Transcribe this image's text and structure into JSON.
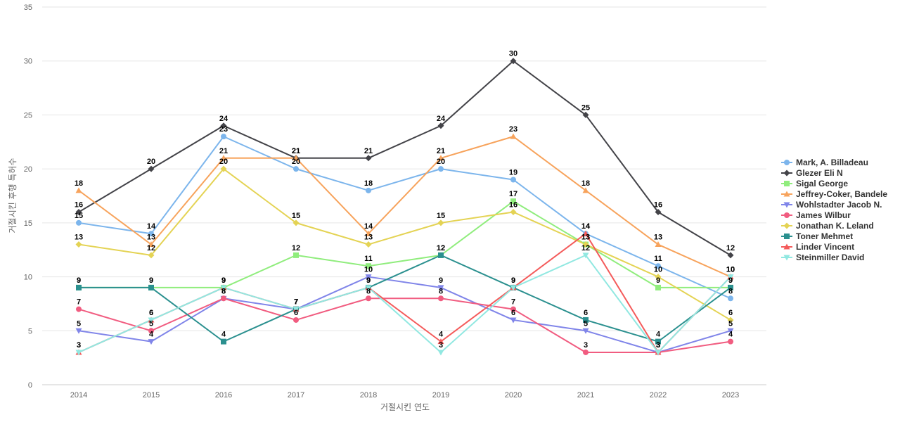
{
  "chart_data": {
    "type": "line",
    "title": "",
    "xlabel": "거절시킨 연도",
    "ylabel": "거절시킨 후행 특허수",
    "x": [
      2014,
      2015,
      2016,
      2017,
      2018,
      2019,
      2020,
      2021,
      2022,
      2023
    ],
    "ylim": [
      0,
      35
    ],
    "yticks": [
      0,
      5,
      10,
      15,
      20,
      25,
      30,
      35
    ],
    "grid": true,
    "legend_position": "right",
    "series": [
      {
        "name": "Mark, A. Billadeau",
        "color": "#7cb5ec",
        "marker": "circle",
        "values": [
          15,
          14,
          23,
          20,
          18,
          20,
          19,
          14,
          11,
          8
        ]
      },
      {
        "name": "Glezer Eli N",
        "color": "#434348",
        "marker": "diamond",
        "values": [
          16,
          20,
          24,
          21,
          21,
          24,
          30,
          25,
          16,
          12
        ]
      },
      {
        "name": "Sigal George",
        "color": "#90ed7d",
        "marker": "square",
        "values": [
          9,
          9,
          9,
          12,
          11,
          12,
          17,
          13,
          9,
          9
        ]
      },
      {
        "name": "Jeffrey-Coker, Bandele",
        "color": "#f7a35c",
        "marker": "triangle",
        "values": [
          18,
          13,
          21,
          21,
          14,
          21,
          23,
          18,
          13,
          10
        ]
      },
      {
        "name": "Wohlstadter Jacob N.",
        "color": "#8085e9",
        "marker": "triangle-down",
        "values": [
          5,
          4,
          8,
          7,
          10,
          9,
          6,
          5,
          3,
          5
        ]
      },
      {
        "name": "James Wilbur",
        "color": "#f15c80",
        "marker": "circle",
        "values": [
          7,
          5,
          8,
          6,
          8,
          8,
          7,
          3,
          3,
          4
        ]
      },
      {
        "name": "Jonathan K. Leland",
        "color": "#e4d354",
        "marker": "diamond",
        "values": [
          13,
          12,
          20,
          15,
          13,
          15,
          16,
          13,
          10,
          6
        ]
      },
      {
        "name": "Toner Mehmet",
        "color": "#2b908f",
        "marker": "square",
        "values": [
          9,
          9,
          4,
          7,
          9,
          12,
          9,
          6,
          4,
          9
        ]
      },
      {
        "name": "Linder Vincent",
        "color": "#f45b5b",
        "marker": "triangle",
        "values": [
          3,
          6,
          9,
          7,
          9,
          4,
          9,
          14,
          3,
          10
        ]
      },
      {
        "name": "Steinmiller David",
        "color": "#91e8e1",
        "marker": "triangle-down",
        "values": [
          3,
          6,
          9,
          7,
          9,
          3,
          9,
          12,
          3,
          10
        ]
      }
    ]
  }
}
